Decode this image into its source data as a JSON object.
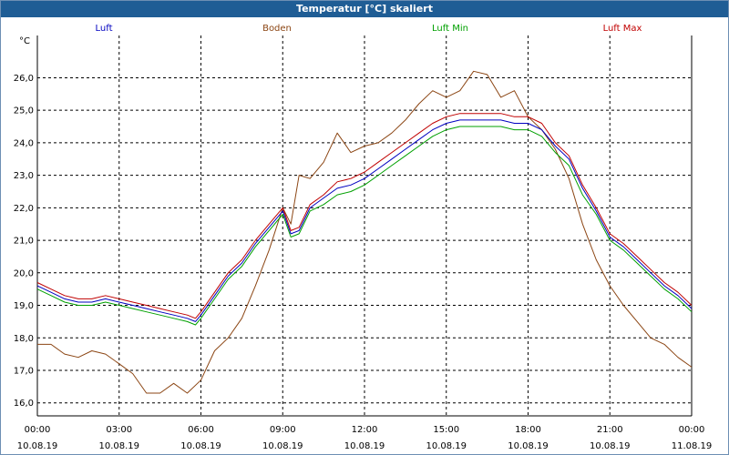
{
  "window": {
    "title": "Temperatur [°C] skaliert"
  },
  "colors": {
    "luft": "#0000c0",
    "boden": "#8b4513",
    "luft_min": "#00a000",
    "luft_max": "#c00000",
    "grid": "#000000",
    "axis_text": "#000000"
  },
  "chart_data": {
    "type": "line",
    "title": "Temperatur [°C] skaliert",
    "ylabel": "°C",
    "xlabel": "",
    "ylim": [
      15.6,
      27.3
    ],
    "yticks": [
      16.0,
      17.0,
      18.0,
      19.0,
      20.0,
      21.0,
      22.0,
      23.0,
      24.0,
      25.0,
      26.0
    ],
    "ytick_labels": [
      "16,0",
      "17,0",
      "18,0",
      "19,0",
      "20,0",
      "21,0",
      "22,0",
      "23,0",
      "24,0",
      "25,0",
      "26,0"
    ],
    "xlim": [
      0,
      24
    ],
    "xticks": [
      0,
      3,
      6,
      9,
      12,
      15,
      18,
      21,
      24
    ],
    "xtick_times": [
      "00:00",
      "03:00",
      "06:00",
      "09:00",
      "12:00",
      "15:00",
      "18:00",
      "21:00",
      "00:00"
    ],
    "xtick_dates": [
      "10.08.19",
      "10.08.19",
      "10.08.19",
      "10.08.19",
      "10.08.19",
      "10.08.19",
      "10.08.19",
      "10.08.19",
      "11.08.19"
    ],
    "grid": true,
    "legend": [
      "Luft",
      "Boden",
      "Luft Min",
      "Luft Max"
    ],
    "series": [
      {
        "name": "Luft",
        "x": [
          0,
          0.5,
          1,
          1.5,
          2,
          2.5,
          3,
          3.5,
          4,
          4.5,
          5,
          5.5,
          5.8,
          6,
          6.5,
          7,
          7.5,
          8,
          8.5,
          9,
          9.3,
          9.6,
          10,
          10.5,
          11,
          11.5,
          12,
          12.5,
          13,
          13.5,
          14,
          14.5,
          15,
          15.5,
          16,
          16.5,
          17,
          17.5,
          18,
          18.5,
          19,
          19.5,
          20,
          20.5,
          21,
          21.5,
          22,
          22.5,
          23,
          23.5,
          24
        ],
        "y": [
          19.6,
          19.4,
          19.2,
          19.1,
          19.1,
          19.2,
          19.1,
          19.0,
          18.9,
          18.8,
          18.7,
          18.6,
          18.5,
          18.7,
          19.3,
          19.9,
          20.3,
          20.9,
          21.4,
          21.9,
          21.2,
          21.3,
          22.0,
          22.3,
          22.6,
          22.7,
          22.9,
          23.2,
          23.5,
          23.8,
          24.1,
          24.4,
          24.6,
          24.7,
          24.7,
          24.7,
          24.7,
          24.6,
          24.6,
          24.4,
          23.9,
          23.5,
          22.6,
          21.9,
          21.1,
          20.8,
          20.4,
          20.0,
          19.6,
          19.3,
          18.9
        ]
      },
      {
        "name": "Boden",
        "x": [
          0,
          0.5,
          1,
          1.5,
          2,
          2.5,
          3,
          3.5,
          4,
          4.5,
          5,
          5.5,
          6,
          6.5,
          7,
          7.5,
          8,
          8.5,
          9,
          9.3,
          9.6,
          10,
          10.5,
          11,
          11.5,
          12,
          12.5,
          13,
          13.5,
          14,
          14.5,
          15,
          15.5,
          16,
          16.5,
          17,
          17.5,
          18,
          18.5,
          19,
          19.5,
          20,
          20.5,
          21,
          21.5,
          22,
          22.5,
          23,
          23.5,
          24
        ],
        "y": [
          17.8,
          17.8,
          17.5,
          17.4,
          17.6,
          17.5,
          17.2,
          16.9,
          16.3,
          16.3,
          16.6,
          16.3,
          16.7,
          17.6,
          18.0,
          18.6,
          19.6,
          20.7,
          22.0,
          21.5,
          23.0,
          22.9,
          23.4,
          24.3,
          23.7,
          23.9,
          24.0,
          24.3,
          24.7,
          25.2,
          25.6,
          25.4,
          25.6,
          26.2,
          26.1,
          25.4,
          25.6,
          24.8,
          24.4,
          23.8,
          22.9,
          21.5,
          20.4,
          19.6,
          19.0,
          18.5,
          18.0,
          17.8,
          17.4,
          17.1
        ]
      },
      {
        "name": "Luft Min",
        "x": [
          0,
          0.5,
          1,
          1.5,
          2,
          2.5,
          3,
          3.5,
          4,
          4.5,
          5,
          5.5,
          5.8,
          6,
          6.5,
          7,
          7.5,
          8,
          8.5,
          9,
          9.3,
          9.6,
          10,
          10.5,
          11,
          11.5,
          12,
          12.5,
          13,
          13.5,
          14,
          14.5,
          15,
          15.5,
          16,
          16.5,
          17,
          17.5,
          18,
          18.5,
          19,
          19.5,
          20,
          20.5,
          21,
          21.5,
          22,
          22.5,
          23,
          23.5,
          24
        ],
        "y": [
          19.5,
          19.3,
          19.1,
          19.0,
          19.0,
          19.1,
          19.0,
          18.9,
          18.8,
          18.7,
          18.6,
          18.5,
          18.4,
          18.6,
          19.2,
          19.8,
          20.2,
          20.8,
          21.3,
          21.8,
          21.1,
          21.2,
          21.9,
          22.1,
          22.4,
          22.5,
          22.7,
          23.0,
          23.3,
          23.6,
          23.9,
          24.2,
          24.4,
          24.5,
          24.5,
          24.5,
          24.5,
          24.4,
          24.4,
          24.2,
          23.7,
          23.3,
          22.4,
          21.8,
          21.0,
          20.7,
          20.3,
          19.9,
          19.5,
          19.2,
          18.8
        ]
      },
      {
        "name": "Luft Max",
        "x": [
          0,
          0.5,
          1,
          1.5,
          2,
          2.5,
          3,
          3.5,
          4,
          4.5,
          5,
          5.5,
          5.8,
          6,
          6.5,
          7,
          7.5,
          8,
          8.5,
          9,
          9.3,
          9.6,
          10,
          10.5,
          11,
          11.5,
          12,
          12.5,
          13,
          13.5,
          14,
          14.5,
          15,
          15.5,
          16,
          16.5,
          17,
          17.5,
          18,
          18.5,
          19,
          19.5,
          20,
          20.5,
          21,
          21.5,
          22,
          22.5,
          23,
          23.5,
          24
        ],
        "y": [
          19.7,
          19.5,
          19.3,
          19.2,
          19.2,
          19.3,
          19.2,
          19.1,
          19.0,
          18.9,
          18.8,
          18.7,
          18.6,
          18.8,
          19.4,
          20.0,
          20.4,
          21.0,
          21.5,
          22.0,
          21.3,
          21.4,
          22.1,
          22.4,
          22.8,
          22.9,
          23.1,
          23.4,
          23.7,
          24.0,
          24.3,
          24.6,
          24.8,
          24.9,
          24.9,
          24.9,
          24.9,
          24.8,
          24.8,
          24.6,
          24.0,
          23.6,
          22.7,
          22.0,
          21.2,
          20.9,
          20.5,
          20.1,
          19.7,
          19.4,
          19.0
        ]
      }
    ]
  }
}
